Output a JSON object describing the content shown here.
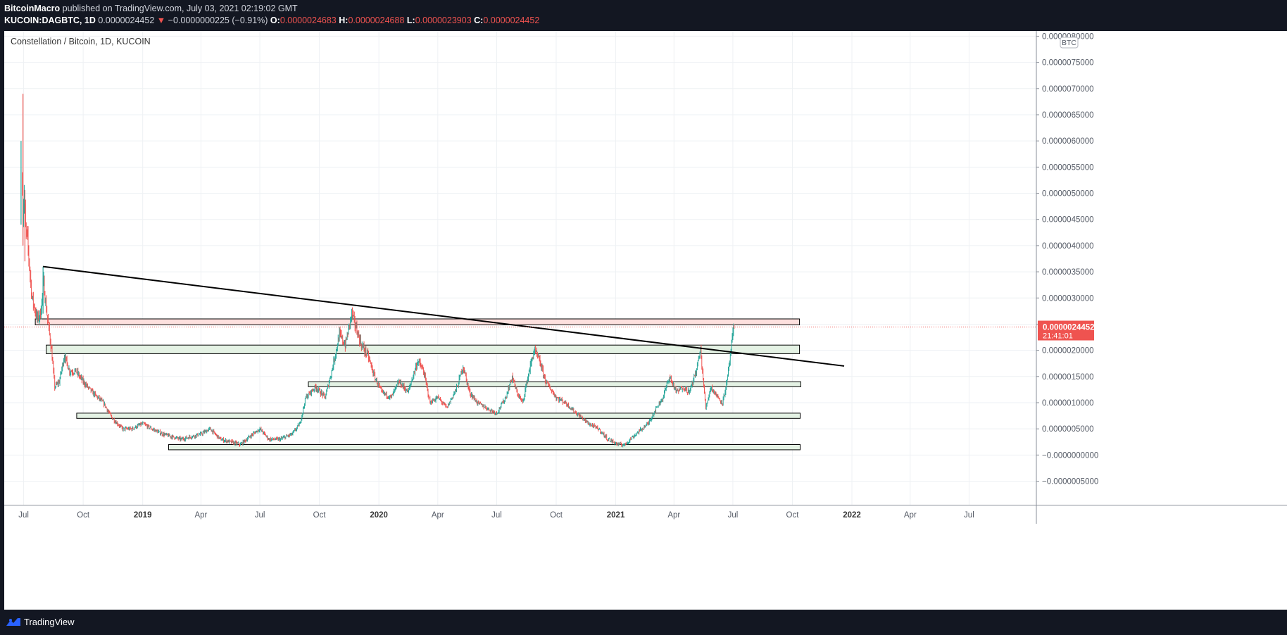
{
  "header": {
    "author": "BitcoinMacro",
    "published_text": "published on TradingView.com, July 03, 2021 02:19:02 GMT",
    "symbol": "KUCOIN:DAGBTC, 1D",
    "last": "0.0000024452",
    "change": "−0.0000000225 (−0.91%)",
    "o_label": "O:",
    "o_value": "0.0000024683",
    "h_label": "H:",
    "h_value": "0.0000024688",
    "l_label": "L:",
    "l_value": "0.0000023903",
    "c_label": "C:",
    "c_value": "0.0000024452"
  },
  "footer": {
    "brand": "TradingView"
  },
  "chart_data": {
    "type": "candlestick",
    "title": "Constellation / Bitcoin, 1D, KUCOIN",
    "currency_badge": "BTC",
    "y_unit_label": "BTC",
    "ylim": [
      -9.5e-07,
      8.1e-06
    ],
    "y_ticks": [
      {
        "value": 8e-06,
        "label": "0.0000080000"
      },
      {
        "value": 7.5e-06,
        "label": "0.0000075000"
      },
      {
        "value": 7e-06,
        "label": "0.0000070000"
      },
      {
        "value": 6.5e-06,
        "label": "0.0000065000"
      },
      {
        "value": 6e-06,
        "label": "0.0000060000"
      },
      {
        "value": 5.5e-06,
        "label": "0.0000055000"
      },
      {
        "value": 5e-06,
        "label": "0.0000050000"
      },
      {
        "value": 4.5e-06,
        "label": "0.0000045000"
      },
      {
        "value": 4e-06,
        "label": "0.0000040000"
      },
      {
        "value": 3.5e-06,
        "label": "0.0000035000"
      },
      {
        "value": 3e-06,
        "label": "0.0000030000"
      },
      {
        "value": 2.5e-06,
        "label": "0.0000025000"
      },
      {
        "value": 2e-06,
        "label": "0.0000020000"
      },
      {
        "value": 1.5e-06,
        "label": "0.0000015000"
      },
      {
        "value": 1e-06,
        "label": "0.0000010000"
      },
      {
        "value": 5e-07,
        "label": "0.0000005000"
      },
      {
        "value": 0.0,
        "label": "−0.0000000000"
      },
      {
        "value": -5e-07,
        "label": "−0.0000005000"
      }
    ],
    "x_start": "2018-06-01",
    "x_end": "2022-10-13",
    "x_ticks": [
      {
        "date": "2018-07-01",
        "label": "Jul",
        "bold": false
      },
      {
        "date": "2018-10-01",
        "label": "Oct",
        "bold": false
      },
      {
        "date": "2019-01-01",
        "label": "2019",
        "bold": true
      },
      {
        "date": "2019-04-01",
        "label": "Apr",
        "bold": false
      },
      {
        "date": "2019-07-01",
        "label": "Jul",
        "bold": false
      },
      {
        "date": "2019-10-01",
        "label": "Oct",
        "bold": false
      },
      {
        "date": "2020-01-01",
        "label": "2020",
        "bold": true
      },
      {
        "date": "2020-04-01",
        "label": "Apr",
        "bold": false
      },
      {
        "date": "2020-07-01",
        "label": "Jul",
        "bold": false
      },
      {
        "date": "2020-10-01",
        "label": "Oct",
        "bold": false
      },
      {
        "date": "2021-01-01",
        "label": "2021",
        "bold": true
      },
      {
        "date": "2021-04-01",
        "label": "Apr",
        "bold": false
      },
      {
        "date": "2021-07-01",
        "label": "Jul",
        "bold": false
      },
      {
        "date": "2021-10-01",
        "label": "Oct",
        "bold": false
      },
      {
        "date": "2022-01-01",
        "label": "2022",
        "bold": true
      },
      {
        "date": "2022-04-01",
        "label": "Apr",
        "bold": false
      },
      {
        "date": "2022-07-01",
        "label": "Jul",
        "bold": false
      }
    ],
    "price_path": [
      [
        "2018-06-29",
        5.2e-06
      ],
      [
        "2018-06-30",
        4.6e-06
      ],
      [
        "2018-07-02",
        5e-06
      ],
      [
        "2018-07-04",
        4.3e-06
      ],
      [
        "2018-07-07",
        4.1e-06
      ],
      [
        "2018-07-10",
        3.6e-06
      ],
      [
        "2018-07-14",
        3e-06
      ],
      [
        "2018-07-18",
        2.8e-06
      ],
      [
        "2018-07-22",
        2.6e-06
      ],
      [
        "2018-07-27",
        2.7e-06
      ],
      [
        "2018-08-01",
        3.3e-06
      ],
      [
        "2018-08-04",
        2.9e-06
      ],
      [
        "2018-08-08",
        2.5e-06
      ],
      [
        "2018-08-13",
        2e-06
      ],
      [
        "2018-08-18",
        1.3e-06
      ],
      [
        "2018-08-25",
        1.4e-06
      ],
      [
        "2018-09-02",
        1.9e-06
      ],
      [
        "2018-09-10",
        1.6e-06
      ],
      [
        "2018-09-20",
        1.6e-06
      ],
      [
        "2018-10-01",
        1.4e-06
      ],
      [
        "2018-10-15",
        1.2e-06
      ],
      [
        "2018-11-01",
        1e-06
      ],
      [
        "2018-11-15",
        7e-07
      ],
      [
        "2018-12-01",
        5e-07
      ],
      [
        "2018-12-15",
        5e-07
      ],
      [
        "2019-01-01",
        6e-07
      ],
      [
        "2019-01-15",
        5e-07
      ],
      [
        "2019-02-01",
        4e-07
      ],
      [
        "2019-03-01",
        3e-07
      ],
      [
        "2019-04-01",
        4e-07
      ],
      [
        "2019-04-15",
        5e-07
      ],
      [
        "2019-05-01",
        3e-07
      ],
      [
        "2019-06-01",
        2e-07
      ],
      [
        "2019-06-20",
        4e-07
      ],
      [
        "2019-07-01",
        5e-07
      ],
      [
        "2019-07-15",
        3e-07
      ],
      [
        "2019-08-01",
        3e-07
      ],
      [
        "2019-08-20",
        4e-07
      ],
      [
        "2019-09-01",
        6e-07
      ],
      [
        "2019-09-10",
        1.1e-06
      ],
      [
        "2019-09-25",
        1.3e-06
      ],
      [
        "2019-10-10",
        1.1e-06
      ],
      [
        "2019-10-20",
        1.6e-06
      ],
      [
        "2019-11-01",
        2.3e-06
      ],
      [
        "2019-11-10",
        2.1e-06
      ],
      [
        "2019-11-20",
        2.7e-06
      ],
      [
        "2019-11-25",
        2.5e-06
      ],
      [
        "2019-12-05",
        2.1e-06
      ],
      [
        "2019-12-15",
        1.9e-06
      ],
      [
        "2019-12-25",
        1.5e-06
      ],
      [
        "2020-01-05",
        1.2e-06
      ],
      [
        "2020-01-20",
        1.1e-06
      ],
      [
        "2020-02-01",
        1.4e-06
      ],
      [
        "2020-02-15",
        1.2e-06
      ],
      [
        "2020-03-01",
        1.8e-06
      ],
      [
        "2020-03-10",
        1.6e-06
      ],
      [
        "2020-03-20",
        1e-06
      ],
      [
        "2020-04-01",
        1.1e-06
      ],
      [
        "2020-04-15",
        9e-07
      ],
      [
        "2020-05-01",
        1.3e-06
      ],
      [
        "2020-05-10",
        1.7e-06
      ],
      [
        "2020-05-20",
        1.2e-06
      ],
      [
        "2020-06-01",
        1e-06
      ],
      [
        "2020-06-15",
        9e-07
      ],
      [
        "2020-07-01",
        8e-07
      ],
      [
        "2020-07-15",
        1.1e-06
      ],
      [
        "2020-07-25",
        1.5e-06
      ],
      [
        "2020-08-01",
        1.2e-06
      ],
      [
        "2020-08-10",
        1e-06
      ],
      [
        "2020-08-20",
        1.6e-06
      ],
      [
        "2020-08-28",
        2e-06
      ],
      [
        "2020-09-05",
        1.8e-06
      ],
      [
        "2020-09-15",
        1.4e-06
      ],
      [
        "2020-10-01",
        1.1e-06
      ],
      [
        "2020-10-15",
        1e-06
      ],
      [
        "2020-11-01",
        8e-07
      ],
      [
        "2020-11-20",
        6e-07
      ],
      [
        "2020-12-05",
        5e-07
      ],
      [
        "2020-12-20",
        3e-07
      ],
      [
        "2021-01-05",
        2e-07
      ],
      [
        "2021-01-15",
        2e-07
      ],
      [
        "2021-02-01",
        4e-07
      ],
      [
        "2021-02-20",
        6e-07
      ],
      [
        "2021-03-05",
        9e-07
      ],
      [
        "2021-03-15",
        1.1e-06
      ],
      [
        "2021-03-25",
        1.5e-06
      ],
      [
        "2021-04-05",
        1.2e-06
      ],
      [
        "2021-04-15",
        1.3e-06
      ],
      [
        "2021-04-25",
        1.2e-06
      ],
      [
        "2021-05-05",
        1.6e-06
      ],
      [
        "2021-05-12",
        2e-06
      ],
      [
        "2021-05-20",
        9e-07
      ],
      [
        "2021-05-28",
        1.3e-06
      ],
      [
        "2021-06-08",
        1.1e-06
      ],
      [
        "2021-06-15",
        1e-06
      ],
      [
        "2021-06-22",
        1.4e-06
      ],
      [
        "2021-06-27",
        1.9e-06
      ],
      [
        "2021-07-01",
        2.3e-06
      ],
      [
        "2021-07-03",
        2.4452e-06
      ]
    ],
    "spike_candles": [
      {
        "date": "2018-06-27",
        "high": 6e-06,
        "low": 4.4e-06,
        "color": "up"
      },
      {
        "date": "2018-06-30",
        "high": 6.9e-06,
        "low": 4e-06,
        "color": "down"
      },
      {
        "date": "2018-07-03",
        "high": 4.8e-06,
        "low": 3.7e-06,
        "color": "down"
      },
      {
        "date": "2018-07-31",
        "high": 3.6e-06,
        "low": 2.7e-06,
        "color": "up"
      }
    ],
    "trendline": {
      "start": {
        "date": "2018-07-31",
        "value": 3.6e-06
      },
      "end": {
        "date": "2021-12-20",
        "value": 1.7e-06
      }
    },
    "zones": [
      {
        "name": "resistance-zone-red",
        "start": "2018-07-19",
        "end": "2021-10-12",
        "top": 2.6e-06,
        "bottom": 2.4865e-06,
        "color": "#fde0de"
      },
      {
        "name": "zone-green-1",
        "start": "2018-08-05",
        "end": "2021-10-12",
        "top": 2.1e-06,
        "bottom": 1.9354e-06,
        "color": "#e4f2e4"
      },
      {
        "name": "zone-green-2",
        "start": "2019-09-14",
        "end": "2021-10-14",
        "top": 1.4e-06,
        "bottom": 1.3045e-06,
        "color": "#e4f2e4"
      },
      {
        "name": "zone-green-3",
        "start": "2018-09-21",
        "end": "2021-10-13",
        "top": 8e-07,
        "bottom": 7e-07,
        "color": "#e4f2e4"
      },
      {
        "name": "zone-green-4",
        "start": "2019-02-10",
        "end": "2021-10-13",
        "top": 2e-07,
        "bottom": 1e-07,
        "color": "#e4f2e4"
      }
    ],
    "last_price": {
      "value": 2.4452e-06,
      "label": "0.0000024452",
      "countdown": "21:41:01"
    },
    "colors": {
      "up": "#26a69a",
      "down": "#ef5350",
      "grid": "#eef1f4",
      "axis_text": "#555b66",
      "trendline": "#000000"
    }
  }
}
